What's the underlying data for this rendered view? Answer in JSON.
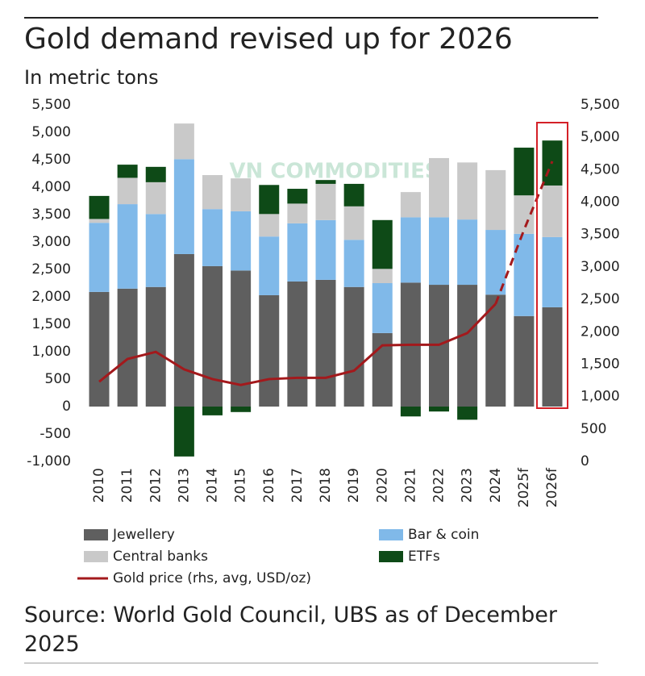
{
  "chart_data": {
    "type": "stacked-bar-line",
    "title": "Gold demand revised up for 2026",
    "subtitle": "In metric tons",
    "source": "Source: World Gold Council, UBS as of December 2025",
    "watermark": "VN COMMODITIES",
    "categories": [
      "2010",
      "2011",
      "2012",
      "2013",
      "2014",
      "2015",
      "2016",
      "2017",
      "2018",
      "2019",
      "2020",
      "2021",
      "2022",
      "2023",
      "2024",
      "2025f",
      "2026f"
    ],
    "series": [
      {
        "name": "Jewellery",
        "color": "#5f5f5f",
        "values": [
          2090,
          2150,
          2180,
          2780,
          2560,
          2480,
          2030,
          2280,
          2310,
          2180,
          1340,
          2260,
          2220,
          2220,
          2040,
          1650,
          1810
        ]
      },
      {
        "name": "Bar & coin",
        "color": "#80b9e9",
        "values": [
          1260,
          1540,
          1330,
          1730,
          1040,
          1080,
          1070,
          1060,
          1090,
          860,
          910,
          1190,
          1230,
          1190,
          1180,
          1500,
          1280
        ]
      },
      {
        "name": "Central banks",
        "color": "#c9c9c9",
        "values": [
          70,
          480,
          580,
          650,
          620,
          600,
          410,
          360,
          660,
          610,
          260,
          460,
          1080,
          1040,
          1090,
          700,
          940
        ]
      },
      {
        "name": "ETFs",
        "color": "#0e4a17",
        "values": [
          420,
          240,
          280,
          -910,
          -160,
          -100,
          530,
          270,
          70,
          410,
          890,
          -180,
          -90,
          -240,
          0,
          870,
          820
        ]
      },
      {
        "name": "Gold price (rhs, avg, USD/oz)",
        "color": "#a3191c",
        "type": "line",
        "axis": "y2",
        "dashed_from": "2024",
        "values": [
          1230,
          1580,
          1690,
          1420,
          1270,
          1180,
          1270,
          1290,
          1290,
          1400,
          1790,
          1800,
          1800,
          1980,
          2430,
          3570,
          4630
        ]
      }
    ],
    "ylim": [
      -1000,
      5500
    ],
    "yticks": [
      {
        "value": -1000,
        "label": "-1,000"
      },
      -500,
      0,
      500,
      {
        "value": 1000,
        "label": "1,000"
      },
      {
        "value": 1500,
        "label": "1,500"
      },
      {
        "value": 2000,
        "label": "2,000"
      },
      {
        "value": 2500,
        "label": "2,500"
      },
      {
        "value": 3000,
        "label": "3,000"
      },
      {
        "value": 3500,
        "label": "3,500"
      },
      {
        "value": 4000,
        "label": "4,000"
      },
      {
        "value": 4500,
        "label": "4,500"
      },
      {
        "value": 5000,
        "label": "5,000"
      },
      {
        "value": 5500,
        "label": "5,500"
      }
    ],
    "y2lim": [
      0,
      5500
    ],
    "y2ticks": [
      0,
      500,
      {
        "value": 1000,
        "label": "1,000"
      },
      {
        "value": 1500,
        "label": "1,500"
      },
      {
        "value": 2000,
        "label": "2,000"
      },
      {
        "value": 2500,
        "label": "2,500"
      },
      {
        "value": 3000,
        "label": "3,000"
      },
      {
        "value": 3500,
        "label": "3,500"
      },
      {
        "value": 4000,
        "label": "4,000"
      },
      {
        "value": 4500,
        "label": "4,500"
      },
      {
        "value": 5000,
        "label": "5,000"
      },
      {
        "value": 5500,
        "label": "5,500"
      }
    ],
    "grid": false
  }
}
